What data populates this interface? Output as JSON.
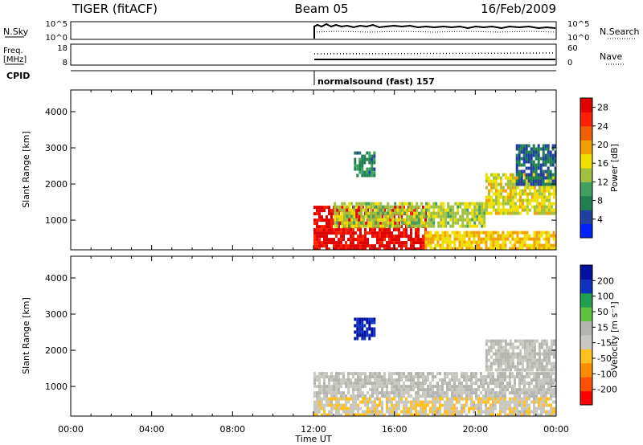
{
  "header": {
    "station": "TIGER (fitACF)",
    "beam": "Beam 05",
    "date": "16/Feb/2009"
  },
  "nsky_panel": {
    "left_label": "N.Sky",
    "left_ticks": [
      "10^5",
      "10^0"
    ],
    "right_ticks": [
      "10^5",
      "10^0"
    ],
    "right_label": "N.Search"
  },
  "freq_panel": {
    "left_label_line1": "Freq.",
    "left_label_line2": "[MHz]",
    "left_ticks": [
      "18",
      "8"
    ],
    "right_ticks": [
      "60",
      "0"
    ],
    "right_label": "Nave"
  },
  "cpid_panel": {
    "label": "CPID",
    "mode_text": "normalsound (fast) 157"
  },
  "colors": {
    "power_scale": [
      "#0020ff",
      "#2040a0",
      "#208050",
      "#40a060",
      "#a0c040",
      "#f0e000",
      "#f0a000",
      "#f06000",
      "#ff2000",
      "#e00000"
    ],
    "velocity_scale": [
      "#ff0000",
      "#ff5000",
      "#ff8c00",
      "#ffc020",
      "#c8c8c0",
      "#b4b4b0",
      "#60c040",
      "#20a050",
      "#1030c0",
      "#0010a0"
    ],
    "ground_scatter": "#c0c0c0"
  },
  "chart_data": [
    {
      "type": "heatmap",
      "title": "",
      "xlabel": "Time UT",
      "ylabel": "Slant Range [km]",
      "x_ticks": [
        "00:00",
        "04:00",
        "08:00",
        "12:00",
        "16:00",
        "20:00",
        "00:00"
      ],
      "x_range_hours": [
        0,
        24
      ],
      "ylim": [
        180,
        4600
      ],
      "y_ticks": [
        "1000",
        "2000",
        "3000",
        "4000"
      ],
      "colorbar": {
        "label": "Power [dB]",
        "ticks": [
          "4",
          "8",
          "12",
          "16",
          "20",
          "24",
          "28"
        ],
        "range": [
          0,
          30
        ]
      },
      "data_coverage_hours": [
        12,
        24
      ],
      "regions": [
        {
          "t": [
            12.0,
            17.5
          ],
          "r": [
            200,
            1400
          ],
          "value": 28
        },
        {
          "t": [
            17.5,
            24.0
          ],
          "r": [
            200,
            700
          ],
          "value": 18
        },
        {
          "t": [
            13.0,
            20.5
          ],
          "r": [
            800,
            1500
          ],
          "value": 14
        },
        {
          "t": [
            14.0,
            15.0
          ],
          "r": [
            2200,
            2900
          ],
          "value": 8
        },
        {
          "t": [
            20.5,
            24.0
          ],
          "r": [
            1200,
            2300
          ],
          "value": 16
        },
        {
          "t": [
            22.0,
            24.0
          ],
          "r": [
            2000,
            3100
          ],
          "value": 6
        }
      ]
    },
    {
      "type": "heatmap",
      "title": "",
      "xlabel": "Time UT",
      "ylabel": "Slant Range [km]",
      "x_ticks": [
        "00:00",
        "04:00",
        "08:00",
        "12:00",
        "16:00",
        "20:00",
        "00:00"
      ],
      "x_range_hours": [
        0,
        24
      ],
      "ylim": [
        180,
        4600
      ],
      "y_ticks": [
        "1000",
        "2000",
        "3000",
        "4000"
      ],
      "colorbar": {
        "label": "Velocity [m s⁻¹]",
        "ticks": [
          "200",
          "100",
          "50",
          "15",
          "-15",
          "-50",
          "-100",
          "-200"
        ],
        "range": [
          -250,
          250
        ]
      },
      "data_coverage_hours": [
        12,
        24
      ],
      "regions": [
        {
          "t": [
            12.0,
            24.0
          ],
          "r": [
            700,
            1400
          ],
          "value": 0
        },
        {
          "t": [
            12.0,
            24.0
          ],
          "r": [
            200,
            700
          ],
          "value": -40
        },
        {
          "t": [
            14.0,
            15.0
          ],
          "r": [
            2300,
            2900
          ],
          "value": 200
        },
        {
          "t": [
            20.5,
            24.0
          ],
          "r": [
            1500,
            2300
          ],
          "value": 0
        }
      ]
    }
  ]
}
